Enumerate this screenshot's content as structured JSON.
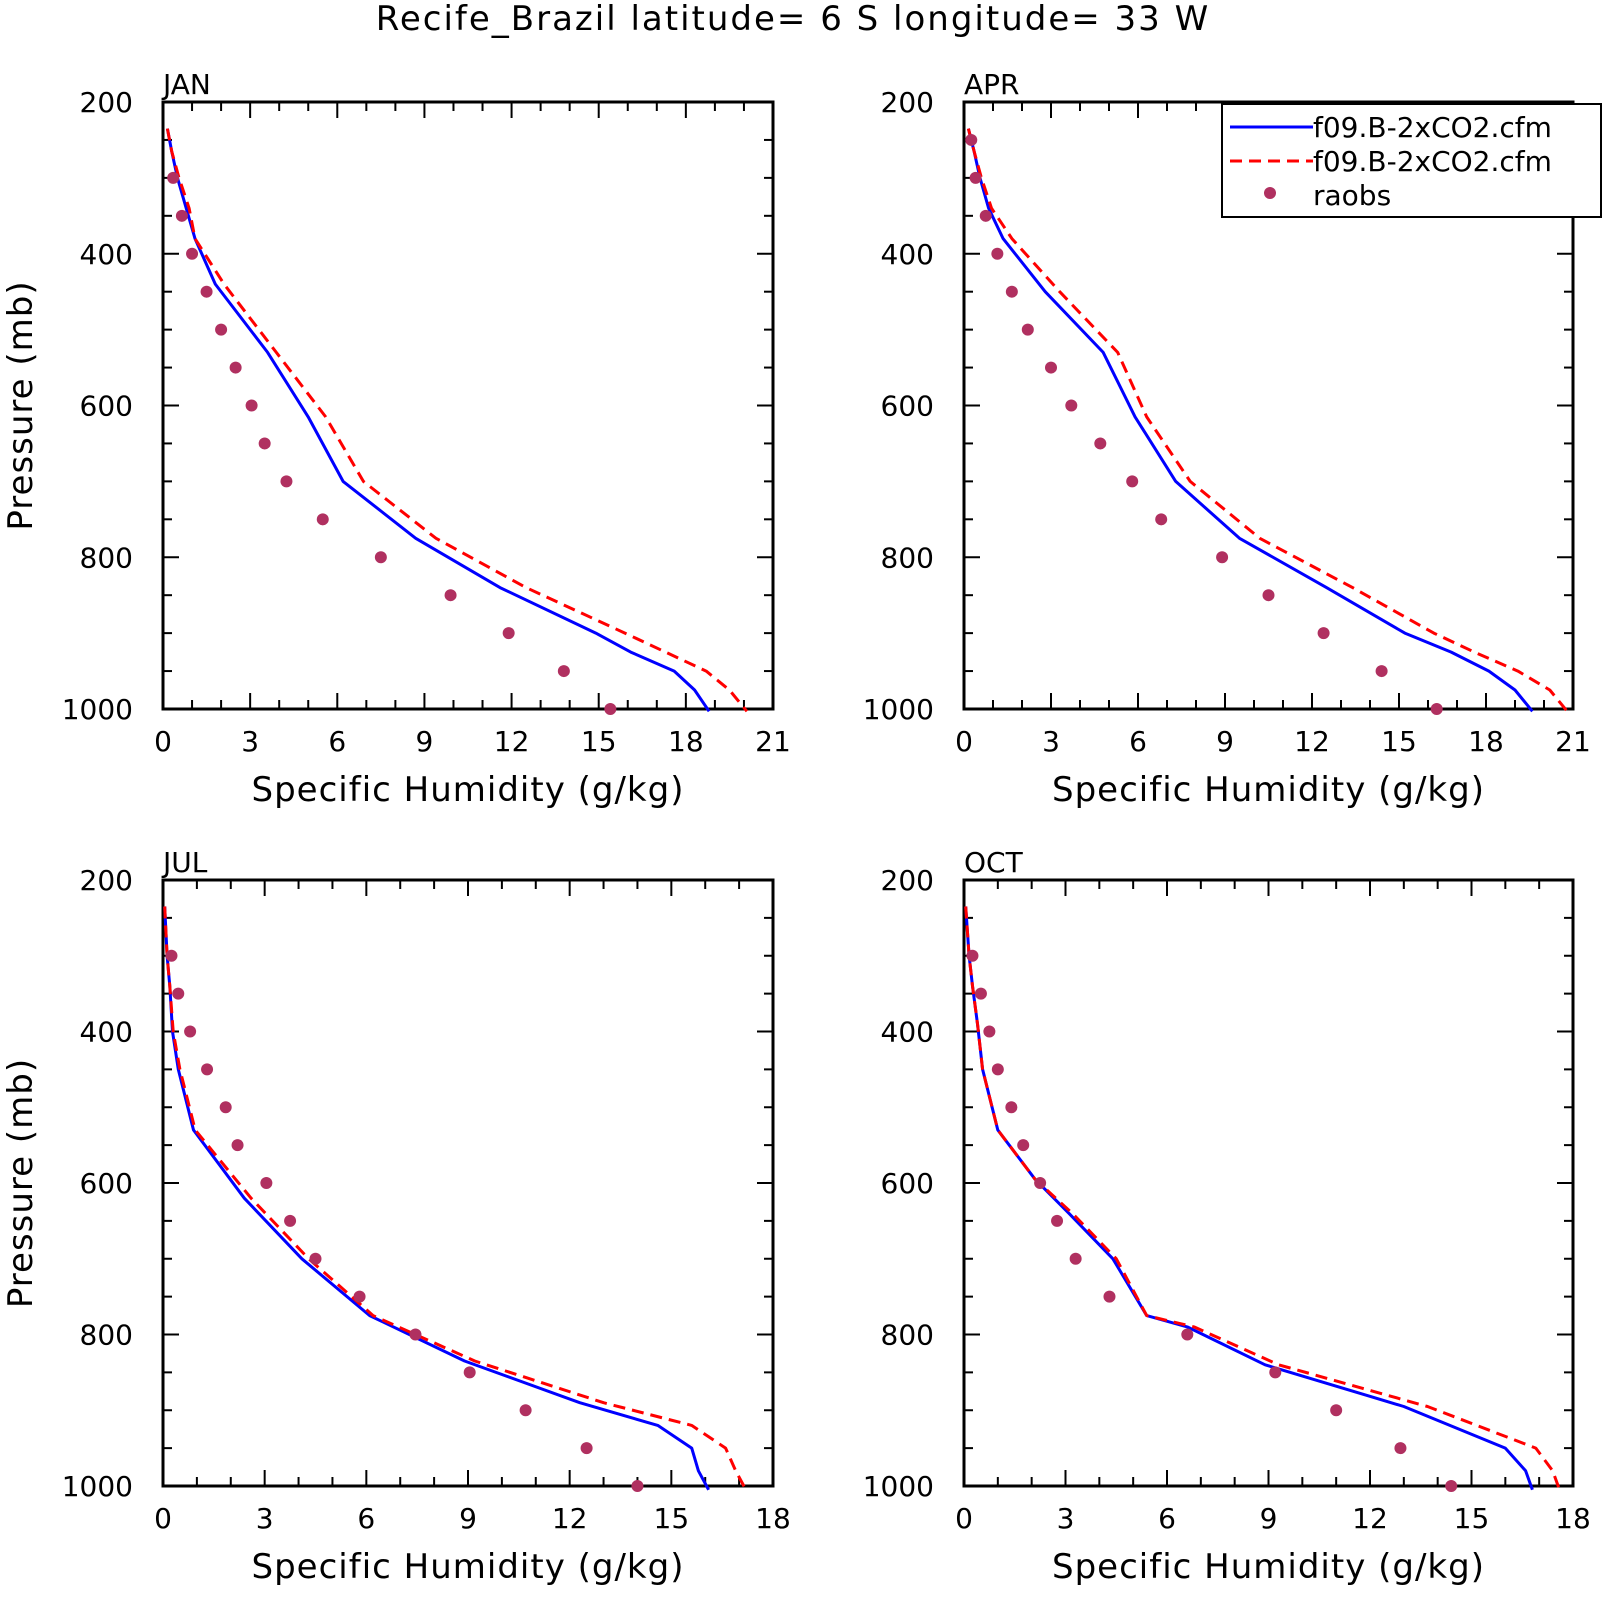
{
  "title": "Recife_Brazil  latitude= 6 S longitude= 33 W",
  "colors": {
    "model1": "#0000ff",
    "model2": "#ff0000",
    "raobs": "#b03060",
    "axes": "#000000"
  },
  "legend": {
    "placement": "top-right of APR panel",
    "entries": [
      "f09.B-2xCO2.cfm",
      "f09.B-2xCO2.cfm",
      "raobs"
    ]
  },
  "chart_data": [
    {
      "type": "line",
      "panel": "JAN",
      "title": "JAN",
      "xlabel": "Specific Humidity (g/kg)",
      "ylabel": "Pressure (mb)",
      "xlim": [
        0,
        21
      ],
      "ylim": [
        200,
        1000
      ],
      "y_inverted": true,
      "xticks": [
        0,
        3,
        6,
        9,
        12,
        15,
        18,
        21
      ],
      "yticks": [
        200,
        400,
        600,
        800,
        1000
      ],
      "series": [
        {
          "name": "f09.B-2xCO2.cfm",
          "style": "solid",
          "color": "#0000ff",
          "x": [
            0.15,
            0.3,
            0.5,
            0.8,
            1.1,
            1.8,
            3.6,
            5.0,
            6.2,
            8.7,
            11.6,
            14.9,
            16.1,
            17.6,
            18.3,
            18.8
          ],
          "y": [
            235,
            265,
            300,
            340,
            380,
            440,
            530,
            615,
            700,
            775,
            840,
            900,
            925,
            950,
            975,
            1003
          ]
        },
        {
          "name": "f09.B-2xCO2.cfm",
          "style": "dashed",
          "color": "#ff0000",
          "x": [
            0.15,
            0.3,
            0.55,
            0.9,
            1.1,
            2.1,
            3.9,
            5.6,
            6.9,
            9.4,
            12.5,
            15.9,
            17.3,
            18.7,
            19.5,
            20.1
          ],
          "y": [
            235,
            265,
            300,
            340,
            380,
            440,
            530,
            615,
            700,
            775,
            840,
            900,
            925,
            950,
            975,
            1003
          ]
        },
        {
          "name": "raobs",
          "style": "markers",
          "color": "#b03060",
          "x": [
            0.35,
            0.65,
            1.0,
            1.5,
            2.0,
            2.5,
            3.05,
            3.5,
            4.25,
            5.5,
            7.5,
            9.9,
            11.9,
            13.8,
            15.4
          ],
          "y": [
            300,
            350,
            400,
            450,
            500,
            550,
            600,
            650,
            700,
            750,
            800,
            850,
            900,
            950,
            1000
          ]
        }
      ]
    },
    {
      "type": "line",
      "panel": "APR",
      "title": "APR",
      "xlabel": "Specific Humidity (g/kg)",
      "ylabel": "",
      "xlim": [
        0,
        21
      ],
      "ylim": [
        200,
        1000
      ],
      "y_inverted": true,
      "xticks": [
        0,
        3,
        6,
        9,
        12,
        15,
        18,
        21
      ],
      "yticks": [
        200,
        400,
        600,
        800,
        1000
      ],
      "series": [
        {
          "name": "f09.B-2xCO2.cfm",
          "style": "solid",
          "color": "#0000ff",
          "x": [
            0.15,
            0.35,
            0.55,
            0.85,
            1.35,
            2.8,
            4.8,
            5.9,
            7.3,
            9.5,
            12.5,
            15.2,
            16.8,
            18.1,
            19.0,
            19.6
          ],
          "y": [
            235,
            265,
            300,
            340,
            380,
            450,
            530,
            615,
            700,
            775,
            840,
            900,
            925,
            950,
            975,
            1003
          ]
        },
        {
          "name": "f09.B-2xCO2.cfm",
          "style": "dashed",
          "color": "#ff0000",
          "x": [
            0.15,
            0.35,
            0.6,
            0.95,
            1.65,
            3.3,
            5.3,
            6.3,
            7.8,
            10.2,
            13.4,
            16.2,
            17.6,
            19.1,
            20.2,
            20.8
          ],
          "y": [
            235,
            265,
            300,
            340,
            380,
            450,
            530,
            615,
            700,
            775,
            840,
            900,
            925,
            950,
            975,
            1003
          ]
        },
        {
          "name": "raobs",
          "style": "markers",
          "color": "#b03060",
          "x": [
            0.25,
            0.4,
            0.75,
            1.15,
            1.65,
            2.2,
            3.0,
            3.7,
            4.7,
            5.8,
            6.8,
            8.9,
            10.5,
            12.4,
            14.4,
            16.3
          ],
          "y": [
            250,
            300,
            350,
            400,
            450,
            500,
            550,
            600,
            650,
            700,
            750,
            800,
            850,
            900,
            950,
            1000
          ]
        }
      ]
    },
    {
      "type": "line",
      "panel": "JUL",
      "title": "JUL",
      "xlabel": "Specific Humidity (g/kg)",
      "ylabel": "Pressure (mb)",
      "xlim": [
        0,
        18
      ],
      "ylim": [
        200,
        1000
      ],
      "y_inverted": true,
      "xticks": [
        0,
        3,
        6,
        9,
        12,
        15,
        18
      ],
      "yticks": [
        200,
        400,
        600,
        800,
        1000
      ],
      "series": [
        {
          "name": "f09.B-2xCO2.cfm",
          "style": "solid",
          "color": "#0000ff",
          "x": [
            0.05,
            0.12,
            0.2,
            0.28,
            0.45,
            0.9,
            2.4,
            4.1,
            6.1,
            8.9,
            12.3,
            14.6,
            15.6,
            15.8,
            16.1
          ],
          "y": [
            235,
            300,
            340,
            400,
            450,
            530,
            620,
            700,
            775,
            835,
            890,
            920,
            950,
            980,
            1005
          ]
        },
        {
          "name": "f09.B-2xCO2.cfm",
          "style": "dashed",
          "color": "#ff0000",
          "x": [
            0.05,
            0.12,
            0.2,
            0.3,
            0.5,
            0.95,
            2.6,
            4.3,
            6.2,
            9.2,
            13.0,
            15.6,
            16.6,
            16.9,
            17.2
          ],
          "y": [
            235,
            300,
            340,
            400,
            450,
            530,
            620,
            700,
            775,
            835,
            890,
            920,
            950,
            980,
            1005
          ]
        },
        {
          "name": "raobs",
          "style": "markers",
          "color": "#b03060",
          "x": [
            0.25,
            0.45,
            0.8,
            1.3,
            1.85,
            2.2,
            3.05,
            3.75,
            4.5,
            5.8,
            7.45,
            9.05,
            10.7,
            12.5,
            14.0
          ],
          "y": [
            300,
            350,
            400,
            450,
            500,
            550,
            600,
            650,
            700,
            750,
            800,
            850,
            900,
            950,
            1000
          ]
        }
      ]
    },
    {
      "type": "line",
      "panel": "OCT",
      "title": "OCT",
      "xlabel": "Specific Humidity (g/kg)",
      "ylabel": "",
      "xlim": [
        0,
        18
      ],
      "ylim": [
        200,
        1000
      ],
      "y_inverted": true,
      "xticks": [
        0,
        3,
        6,
        9,
        12,
        15,
        18
      ],
      "yticks": [
        200,
        400,
        600,
        800,
        1000
      ],
      "series": [
        {
          "name": "f09.B-2xCO2.cfm",
          "style": "solid",
          "color": "#0000ff",
          "x": [
            0.05,
            0.15,
            0.25,
            0.4,
            0.55,
            1.0,
            2.1,
            3.1,
            4.4,
            5.4,
            6.6,
            8.9,
            13.0,
            16.0,
            16.6,
            16.8
          ],
          "y": [
            235,
            300,
            340,
            390,
            450,
            530,
            595,
            640,
            700,
            775,
            790,
            840,
            895,
            950,
            980,
            1005
          ]
        },
        {
          "name": "f09.B-2xCO2.cfm",
          "style": "dashed",
          "color": "#ff0000",
          "x": [
            0.05,
            0.15,
            0.25,
            0.4,
            0.55,
            1.0,
            2.1,
            3.2,
            4.5,
            5.4,
            6.8,
            9.3,
            13.7,
            16.9,
            17.4,
            17.6
          ],
          "y": [
            235,
            300,
            340,
            390,
            450,
            530,
            595,
            640,
            700,
            775,
            790,
            840,
            895,
            950,
            980,
            1005
          ]
        },
        {
          "name": "raobs",
          "style": "markers",
          "color": "#b03060",
          "x": [
            0.25,
            0.5,
            0.75,
            1.0,
            1.4,
            1.75,
            2.25,
            2.75,
            3.3,
            4.3,
            6.6,
            9.2,
            11.0,
            12.9,
            14.4
          ],
          "y": [
            300,
            350,
            400,
            450,
            500,
            550,
            600,
            650,
            700,
            750,
            800,
            850,
            900,
            950,
            1000
          ]
        }
      ]
    }
  ]
}
